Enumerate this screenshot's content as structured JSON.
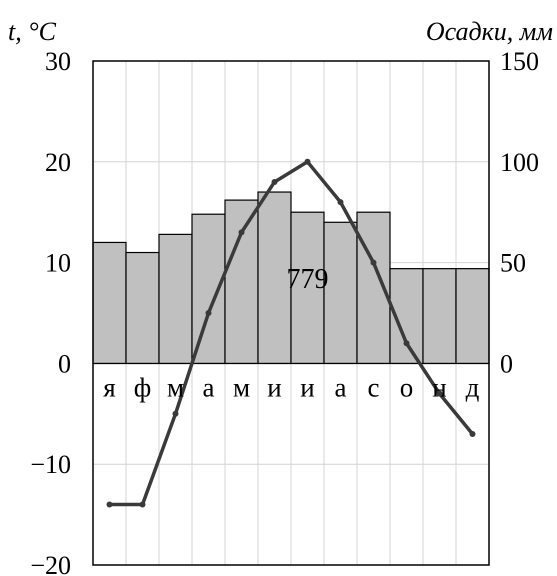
{
  "chart_data": {
    "type": "climatogram",
    "categories": [
      "я",
      "ф",
      "м",
      "а",
      "м",
      "и",
      "и",
      "а",
      "с",
      "о",
      "н",
      "д"
    ],
    "series": [
      {
        "type": "bar",
        "axis": "right",
        "values": [
          60,
          55,
          64,
          74,
          81,
          85,
          75,
          70,
          75,
          47,
          47,
          47
        ],
        "color": "#c0c0c0"
      },
      {
        "type": "line",
        "axis": "left",
        "values": [
          -14,
          -14,
          -5,
          5,
          13,
          18,
          20,
          16,
          10,
          2,
          -3,
          -7
        ],
        "color": "#3a3a3a"
      }
    ],
    "left_axis": {
      "label": "t, °C",
      "min": -20,
      "max": 30,
      "ticks": [
        "30",
        "20",
        "10",
        "0",
        "−10",
        "−20"
      ]
    },
    "right_axis": {
      "label": "Осадки, мм",
      "min": -100,
      "max": 150,
      "ticks": [
        "150",
        "100",
        "50",
        "0"
      ]
    },
    "annotation": "779",
    "grid": true
  }
}
